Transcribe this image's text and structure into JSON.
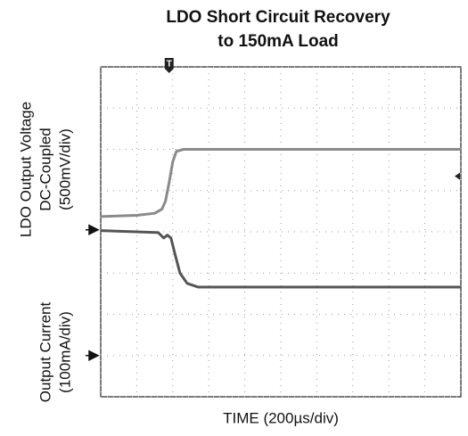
{
  "chart_data": {
    "type": "line",
    "title": [
      "LDO Short Circuit Recovery",
      "to 150mA Load"
    ],
    "ylabel_groups": [
      [
        "LDO Output Voltage",
        "DC-Coupled",
        "(500mV/div)"
      ],
      [
        "Output Current",
        "(100mA/div)"
      ]
    ],
    "xlabel": "TIME (200µs/div)",
    "xlim": [
      0,
      10
    ],
    "ylim": [
      0,
      8
    ],
    "xticks": [
      0,
      1,
      2,
      3,
      4,
      5,
      6,
      7,
      8,
      9,
      10
    ],
    "yticks": [
      0,
      1,
      2,
      3,
      4,
      5,
      6,
      7,
      8
    ],
    "grid": true,
    "series": [
      {
        "color": "#8a8a8a",
        "x": [
          0,
          1,
          1.5,
          1.7,
          1.8,
          1.9,
          2.0,
          2.1,
          2.3,
          10
        ],
        "values": [
          4.37,
          4.4,
          4.45,
          4.55,
          4.75,
          5.2,
          5.7,
          5.95,
          6.0,
          6.0
        ]
      },
      {
        "color": "#555555",
        "x": [
          0,
          1,
          1.6,
          1.75,
          1.85,
          1.95,
          2.05,
          2.2,
          2.4,
          2.7,
          10
        ],
        "values": [
          4.03,
          4.0,
          3.98,
          3.85,
          3.92,
          3.85,
          3.5,
          3.0,
          2.75,
          2.66,
          2.66
        ]
      }
    ],
    "ground_markers": [
      4.05,
      1.0
    ],
    "trigger_x": 1.9,
    "trigger_label": "T",
    "trigger_level": 5.35
  }
}
